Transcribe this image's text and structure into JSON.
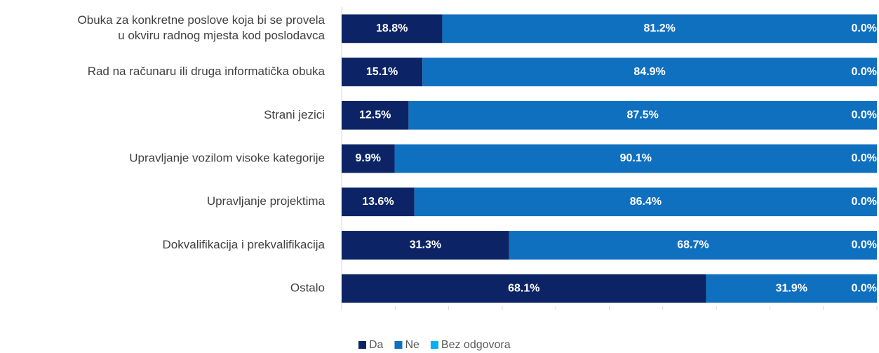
{
  "chart_data": {
    "type": "stacked-bar-horizontal",
    "categories": [
      "Obuka za konkretne poslove koja bi se provela\nu okviru radnog mjesta kod poslodavca",
      "Rad na računaru ili druga informatička obuka",
      "Strani jezici",
      "Upravljanje vozilom visoke kategorije",
      "Upravljanje projektima",
      "Dokvalifikacija i prekvalifikacija",
      "Ostalo"
    ],
    "series": [
      {
        "name": "Da",
        "color": "#0c2466",
        "values": [
          18.8,
          15.1,
          12.5,
          9.9,
          13.6,
          31.3,
          68.1
        ],
        "value_labels": [
          "18.8%",
          "15.1%",
          "12.5%",
          "9.9%",
          "13.6%",
          "31.3%",
          "68.1%"
        ]
      },
      {
        "name": "Ne",
        "color": "#1070c0",
        "values": [
          81.2,
          84.9,
          87.5,
          90.1,
          86.4,
          68.7,
          31.9
        ],
        "value_labels": [
          "81.2%",
          "84.9%",
          "87.5%",
          "90.1%",
          "86.4%",
          "68.7%",
          "31.9%"
        ]
      },
      {
        "name": "Bez odgovora",
        "color": "#00b0f0",
        "values": [
          0,
          0,
          0,
          0,
          0,
          0,
          0
        ],
        "value_labels": [
          "0.0%",
          "0.0%",
          "0.0%",
          "0.0%",
          "0.0%",
          "0.0%",
          "0.0%"
        ]
      }
    ],
    "xlim": [
      0,
      100
    ],
    "xticks": [
      0,
      10,
      20,
      30,
      40,
      50,
      60,
      70,
      80,
      90,
      100
    ],
    "legend": "bottom"
  }
}
